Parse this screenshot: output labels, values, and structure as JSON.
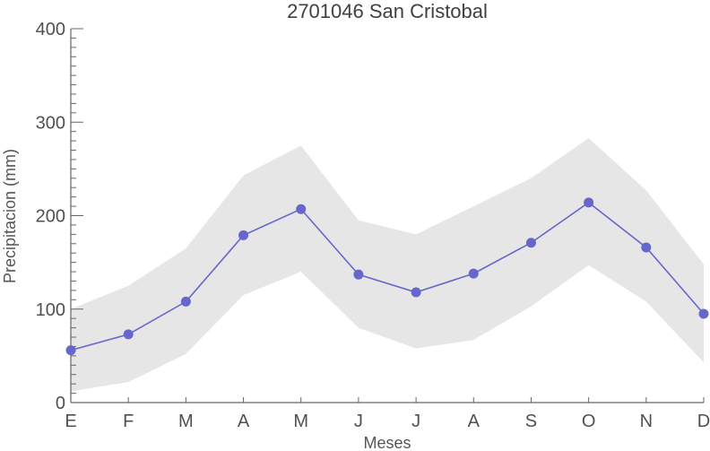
{
  "chart_data": {
    "type": "line",
    "title": "2701046 San Cristobal",
    "xlabel": "Meses",
    "ylabel": "Precipitacion (mm)",
    "categories": [
      "E",
      "F",
      "M",
      "A",
      "M",
      "J",
      "J",
      "A",
      "S",
      "O",
      "N",
      "D"
    ],
    "ylim": [
      0,
      400
    ],
    "yticks": [
      0,
      100,
      200,
      300,
      400
    ],
    "grid": false,
    "series": [
      {
        "values": [
          56,
          73,
          108,
          179,
          207,
          137,
          118,
          138,
          171,
          214,
          166,
          95
        ],
        "color": "#6666cc"
      }
    ],
    "band": {
      "lower": [
        12,
        22,
        52,
        115,
        140,
        80,
        58,
        67,
        103,
        147,
        108,
        43
      ],
      "upper": [
        100,
        125,
        165,
        243,
        275,
        195,
        180,
        210,
        240,
        283,
        227,
        148
      ],
      "color": "#e6e6e6"
    }
  }
}
